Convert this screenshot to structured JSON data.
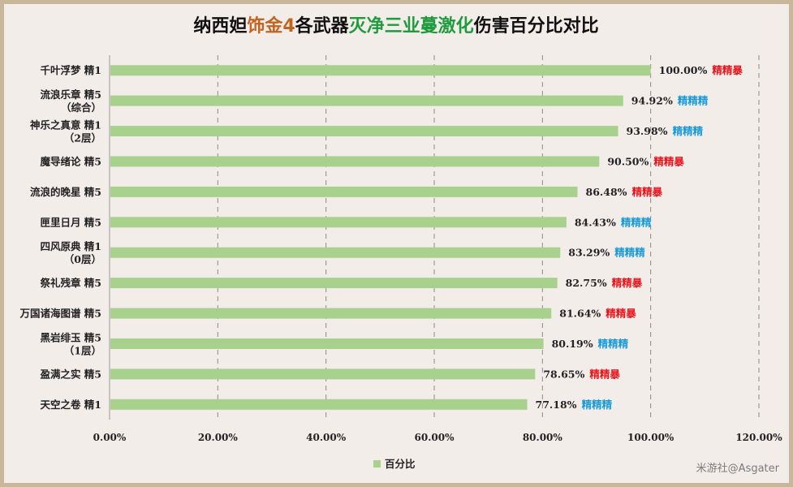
{
  "title_segments": [
    {
      "text": "纳西妲",
      "color": "#111111"
    },
    {
      "text": "饰金4",
      "color": "#c26420"
    },
    {
      "text": "各武器",
      "color": "#111111"
    },
    {
      "text": "灭净三业蔓激化",
      "color": "#1f9a3c"
    },
    {
      "text": "伤害百分比对比",
      "color": "#111111"
    }
  ],
  "chart_data": {
    "type": "bar",
    "orientation": "horizontal",
    "title": "纳西妲饰金4各武器灭净三业蔓激化伤害百分比对比",
    "categories": [
      [
        "千叶浮梦 精1"
      ],
      [
        "流浪乐章 精5",
        "（综合）"
      ],
      [
        "神乐之真意 精1",
        "（2层）"
      ],
      [
        "魔导绪论 精5"
      ],
      [
        "流浪的晚星 精5"
      ],
      [
        "匣里日月 精5"
      ],
      [
        "四风原典 精1",
        "（0层）"
      ],
      [
        "祭礼残章 精5"
      ],
      [
        "万国诸海图谱 精5"
      ],
      [
        "黑岩绯玉 精5",
        "（1层）"
      ],
      [
        "盈满之实 精5"
      ],
      [
        "天空之卷 精1"
      ]
    ],
    "series": [
      {
        "name": "百分比",
        "values": [
          100.0,
          94.92,
          93.98,
          90.5,
          86.48,
          84.43,
          83.29,
          82.75,
          81.64,
          80.19,
          78.65,
          77.18
        ]
      }
    ],
    "value_labels": [
      "100.00%",
      "94.92%",
      "93.98%",
      "90.50%",
      "86.48%",
      "84.43%",
      "83.29%",
      "82.75%",
      "81.64%",
      "80.19%",
      "78.65%",
      "77.18%"
    ],
    "annotations": [
      "精精暴",
      "精精精",
      "精精精",
      "精精暴",
      "精精暴",
      "精精精",
      "精精精",
      "精精暴",
      "精精暴",
      "精精精",
      "精精暴",
      "精精精"
    ],
    "annotation_colors": {
      "精精暴": "#e8141c",
      "精精精": "#1a9ad6"
    },
    "xlim": [
      0,
      120
    ],
    "xticks": [
      "0.00%",
      "20.00%",
      "40.00%",
      "60.00%",
      "80.00%",
      "100.00%",
      "120.00%"
    ],
    "grid": "vertical-dashed",
    "bar_color": "#a9d18e",
    "legend": {
      "position": "bottom",
      "label": "百分比"
    }
  },
  "watermark": "米游社@Asgater"
}
